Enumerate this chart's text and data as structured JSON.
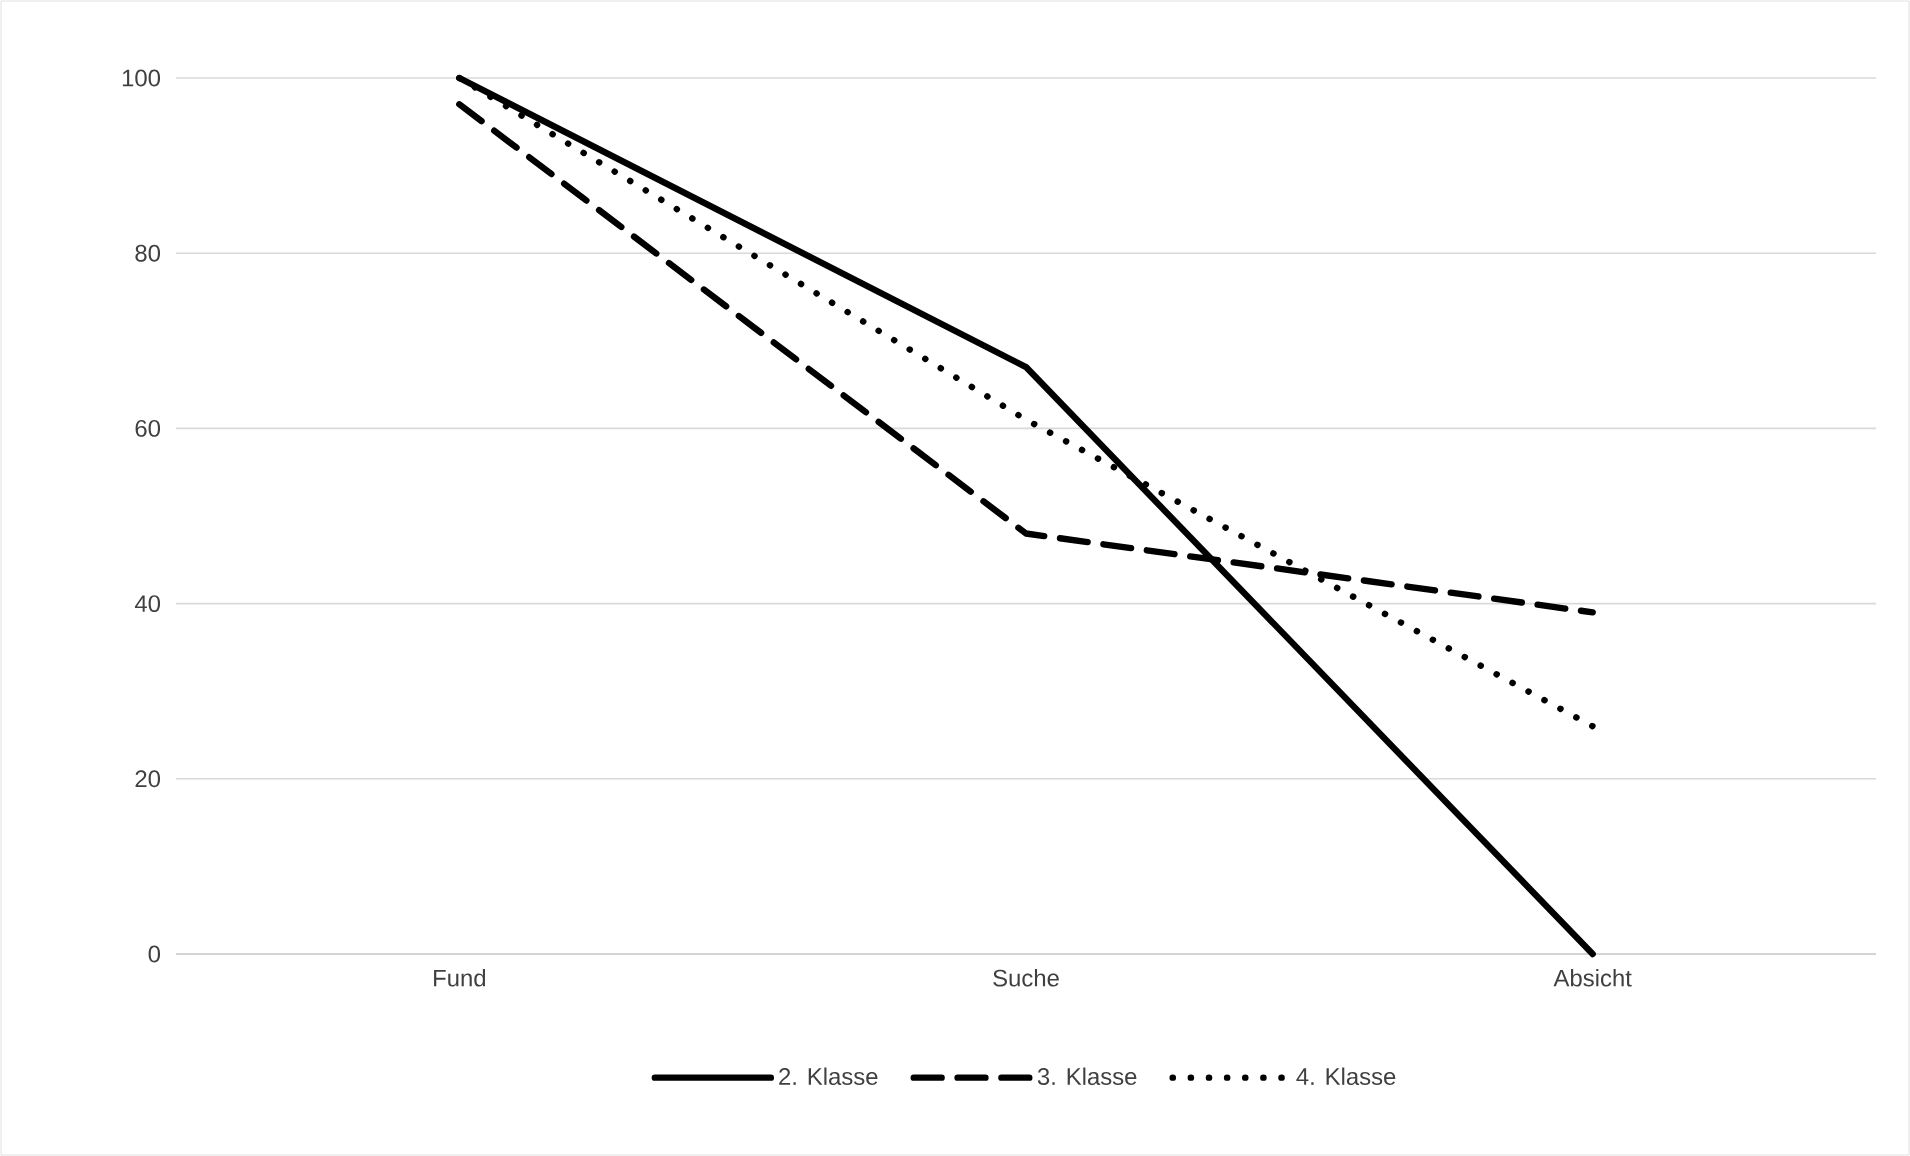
{
  "chart_data": {
    "type": "line",
    "categories": [
      "Fund",
      "Suche",
      "Absicht"
    ],
    "series": [
      {
        "name": "2. Klasse",
        "color": "#000000",
        "line_style": "solid",
        "values": [
          100,
          67,
          0
        ]
      },
      {
        "name": "3. Klasse",
        "color": "#000000",
        "line_style": "dashed",
        "values": [
          97,
          48,
          39
        ]
      },
      {
        "name": "4. Klasse",
        "color": "#000000",
        "line_style": "dotted",
        "values": [
          100,
          61,
          26
        ]
      }
    ],
    "ylim": [
      0,
      100
    ],
    "yticks": [
      0,
      20,
      40,
      60,
      80,
      100
    ],
    "grid": "y",
    "legend": "bottom",
    "marker": "none"
  }
}
